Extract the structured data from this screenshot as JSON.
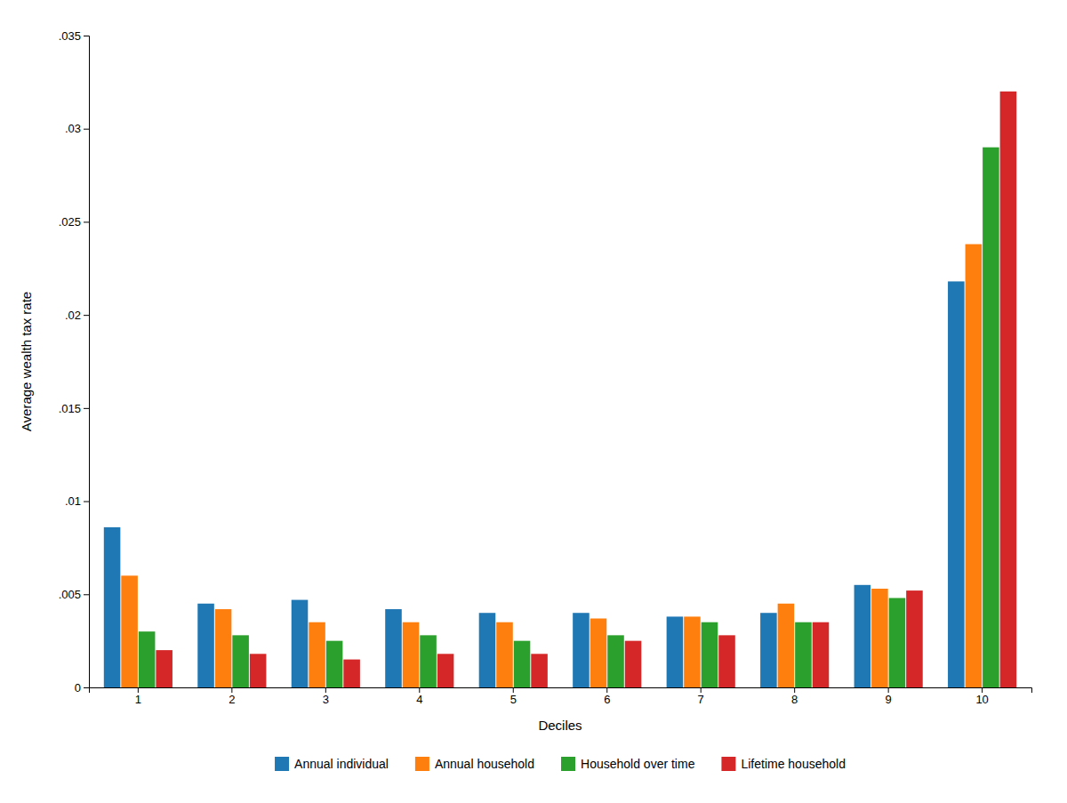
{
  "chart_data": {
    "type": "bar",
    "categories": [
      "1",
      "2",
      "3",
      "4",
      "5",
      "6",
      "7",
      "8",
      "9",
      "10"
    ],
    "series": [
      {
        "name": "Annual individual",
        "values": [
          0.0086,
          0.0045,
          0.0047,
          0.0042,
          0.004,
          0.004,
          0.0038,
          0.004,
          0.0055,
          0.0218
        ]
      },
      {
        "name": "Annual household",
        "values": [
          0.006,
          0.0042,
          0.0035,
          0.0035,
          0.0035,
          0.0037,
          0.0038,
          0.0045,
          0.0053,
          0.0238
        ]
      },
      {
        "name": "Household over time",
        "values": [
          0.003,
          0.0028,
          0.0025,
          0.0028,
          0.0025,
          0.0028,
          0.0035,
          0.0035,
          0.0048,
          0.029
        ]
      },
      {
        "name": "Lifetime household",
        "values": [
          0.002,
          0.0018,
          0.0015,
          0.0018,
          0.0018,
          0.0025,
          0.0028,
          0.0035,
          0.0052,
          0.032
        ]
      }
    ],
    "xlabel": "Deciles",
    "ylabel": "Average wealth tax rate",
    "ylim": [
      0,
      0.035
    ],
    "yticks": [
      0,
      {
        "value": 0.005,
        "label": ".005"
      },
      {
        "value": 0.01,
        "label": ".01"
      },
      {
        "value": 0.015,
        "label": ".015"
      },
      {
        "value": 0.02,
        "label": ".02"
      },
      {
        "value": 0.025,
        "label": ".025"
      },
      {
        "value": 0.03,
        "label": ".03"
      },
      {
        "value": 0.035,
        "label": ".035"
      }
    ],
    "grid": false,
    "legend": "bottom"
  }
}
